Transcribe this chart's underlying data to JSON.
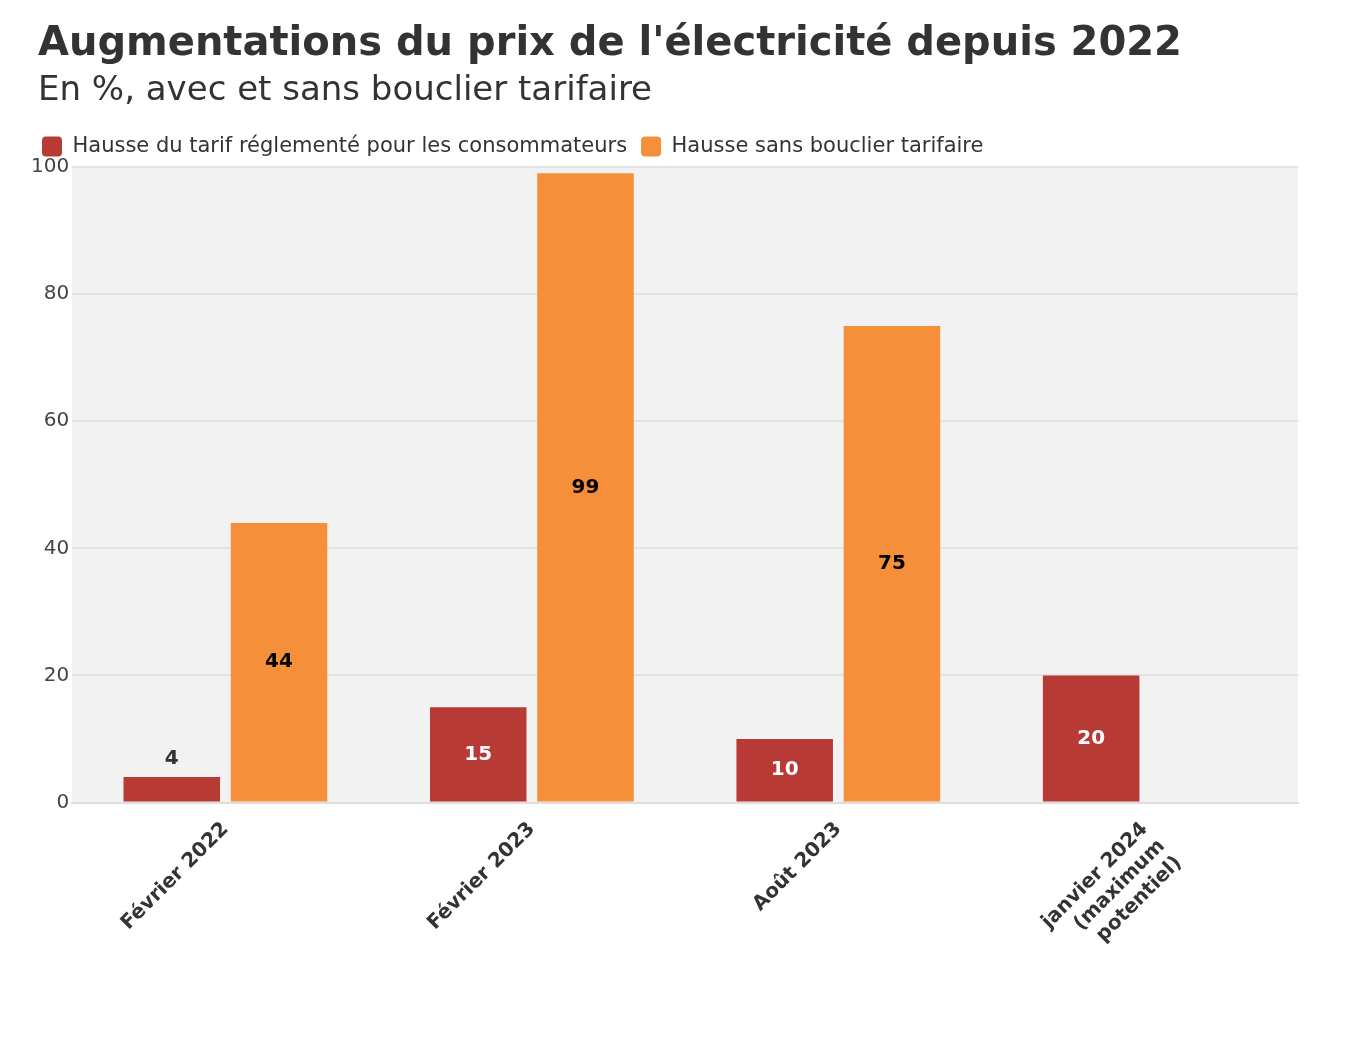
{
  "chart_data": {
    "type": "bar",
    "title": "Augmentations du prix de l'électricité depuis 2022",
    "subtitle": "En %, avec et sans bouclier tarifaire",
    "categories": [
      "Février 2022",
      "Février 2023",
      "Août 2023",
      "janvier 2024 (maximum potentiel)"
    ],
    "series": [
      {
        "name": "Hausse du tarif réglementé pour les consommateurs",
        "color": "#b83a35",
        "values": [
          4,
          15,
          10,
          20
        ]
      },
      {
        "name": "Hausse sans bouclier tarifaire",
        "color": "#f58f3a",
        "values": [
          44,
          99,
          75,
          null
        ]
      }
    ],
    "ylim": [
      0,
      100
    ],
    "yticks": [
      0,
      20,
      40,
      60,
      80,
      100
    ],
    "grid": "y",
    "legend": "top left",
    "data_labels": true
  }
}
